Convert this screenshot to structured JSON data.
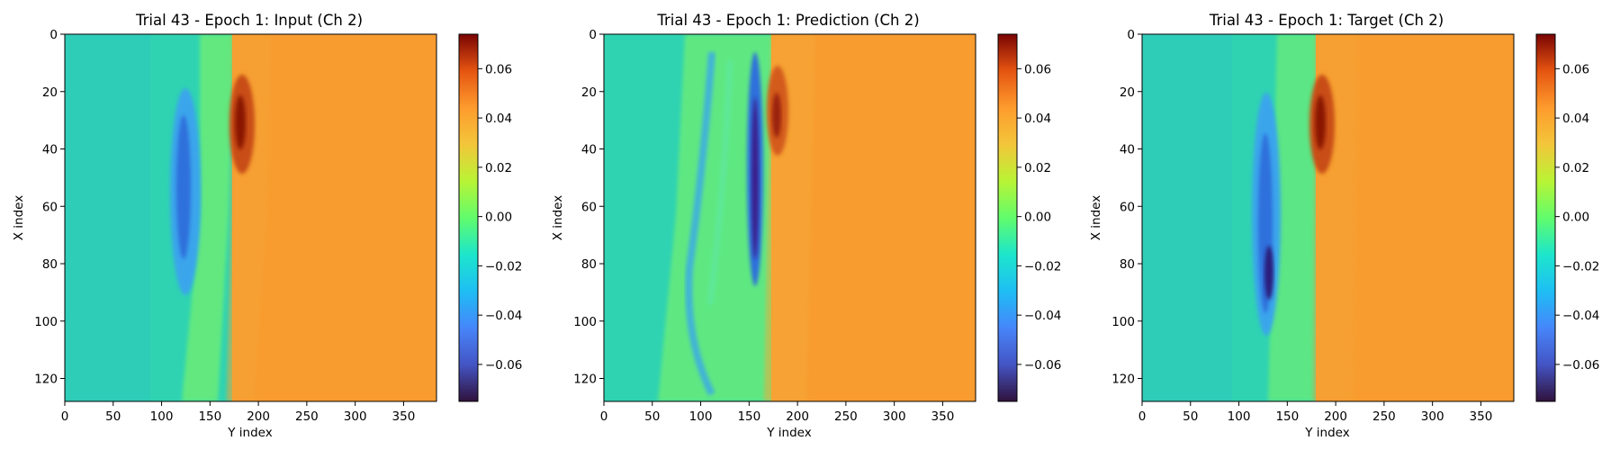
{
  "chart_data": [
    {
      "type": "heatmap",
      "title": "Trial 43 - Epoch 1: Input (Ch 2)",
      "xlabel": "Y index",
      "ylabel": "X index",
      "xlim": [
        0,
        384
      ],
      "ylim": [
        128,
        0
      ],
      "xticks": [
        0,
        50,
        100,
        150,
        200,
        250,
        300,
        350
      ],
      "yticks": [
        0,
        20,
        40,
        60,
        80,
        100,
        120
      ],
      "colorbar": {
        "range": [
          -0.075,
          0.074
        ],
        "ticks": [
          "0.06",
          "0.04",
          "0.02",
          "0.00",
          "−0.02",
          "−0.04",
          "−0.06"
        ]
      },
      "colormap": "turbo",
      "front_y": [
        180,
        175,
        168
      ],
      "features": [
        {
          "kind": "negative_lobe",
          "x_range": [
            30,
            90
          ],
          "y_center": 125,
          "min_value": -0.045
        },
        {
          "kind": "positive_peak",
          "x_center": 30,
          "y_center": 183,
          "max_value": 0.065
        }
      ]
    },
    {
      "type": "heatmap",
      "title": "Trial 43 - Epoch 1: Prediction (Ch 2)",
      "xlabel": "Y index",
      "ylabel": "X index",
      "xlim": [
        0,
        384
      ],
      "ylim": [
        128,
        0
      ],
      "xticks": [
        0,
        50,
        100,
        150,
        200,
        250,
        300,
        350
      ],
      "yticks": [
        0,
        20,
        40,
        60,
        80,
        100,
        120
      ],
      "colorbar": {
        "range": [
          -0.075,
          0.074
        ],
        "ticks": [
          "0.06",
          "0.04",
          "0.02",
          "0.00",
          "−0.02",
          "−0.04",
          "−0.06"
        ]
      },
      "colormap": "turbo",
      "front_y": [
        175,
        170,
        172
      ],
      "features": [
        {
          "kind": "negative_band",
          "x_range": [
            30,
            90
          ],
          "y_center": 155,
          "min_value": -0.07
        },
        {
          "kind": "positive_peak",
          "x_center": 30,
          "y_center": 172,
          "max_value": 0.06
        }
      ]
    },
    {
      "type": "heatmap",
      "title": "Trial 43 - Epoch 1: Target (Ch 2)",
      "xlabel": "Y index",
      "ylabel": "X index",
      "xlim": [
        0,
        384
      ],
      "ylim": [
        128,
        0
      ],
      "xticks": [
        0,
        50,
        100,
        150,
        200,
        250,
        300,
        350
      ],
      "yticks": [
        0,
        20,
        40,
        60,
        80,
        100,
        120
      ],
      "colorbar": {
        "range": [
          -0.075,
          0.074
        ],
        "ticks": [
          "0.06",
          "0.04",
          "0.02",
          "0.00",
          "−0.02",
          "−0.04",
          "−0.06"
        ]
      },
      "colormap": "turbo",
      "front_y": [
        182,
        180,
        180
      ],
      "features": [
        {
          "kind": "negative_lobe",
          "x_range": [
            25,
            100
          ],
          "y_center": 130,
          "min_value": -0.07
        },
        {
          "kind": "positive_peak",
          "x_center": 30,
          "y_center": 185,
          "max_value": 0.07
        }
      ]
    }
  ]
}
